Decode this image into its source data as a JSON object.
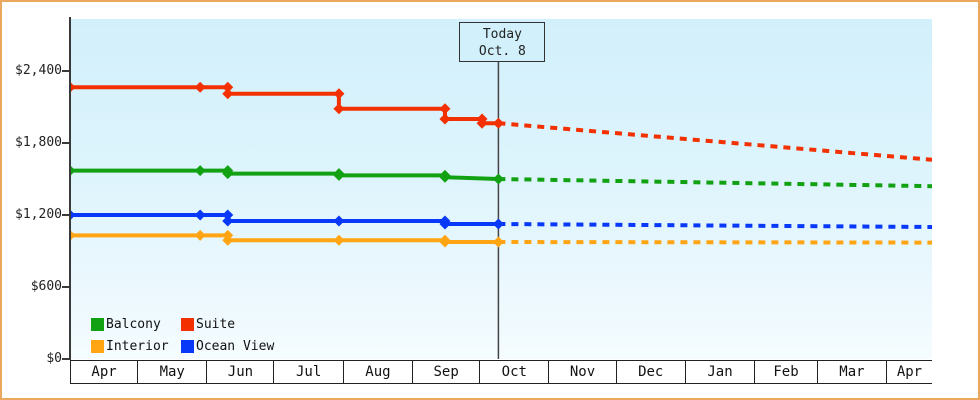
{
  "window": {
    "border_color": "#e9a85e",
    "background": "#ffffff",
    "plot_background_top": "#d2f0fb",
    "plot_background_bottom": "#f5fcfe"
  },
  "chart_data": {
    "type": "line",
    "title": "",
    "description": "Cabin price history by category with dotted future projection after today",
    "y_axis": {
      "tick_labels": [
        "$0",
        "$600",
        "$1,200",
        "$1,800",
        "$2,400"
      ],
      "tick_values": [
        0,
        600,
        1200,
        1800,
        2400
      ],
      "range": [
        0,
        2400
      ],
      "grid": false
    },
    "x_axis": {
      "month_labels": [
        "Apr",
        "May",
        "Jun",
        "Jul",
        "Aug",
        "Sep",
        "Oct",
        "Nov",
        "Dec",
        "Jan",
        "Feb",
        "Mar",
        "Apr"
      ],
      "month_weights": [
        30,
        31,
        30,
        31,
        31,
        30,
        31,
        30,
        31,
        31,
        28,
        31,
        20
      ]
    },
    "today": {
      "label_line1": "Today",
      "label_line2": "Oct. 8",
      "x_frac": 0.497
    },
    "series": [
      {
        "name": "Suite",
        "color": "#f23000",
        "points": [
          {
            "date": "Apr",
            "x_frac": 0.0,
            "price": 2265
          },
          {
            "date": "May 29",
            "x_frac": 0.151,
            "price": 2265
          },
          {
            "date": "Jun 10",
            "x_frac": 0.183,
            "price": 2265
          },
          {
            "date": "Jun 10",
            "x_frac": 0.183,
            "price": 2210
          },
          {
            "date": "Jul 30",
            "x_frac": 0.312,
            "price": 2210
          },
          {
            "date": "Jul 30",
            "x_frac": 0.312,
            "price": 2085
          },
          {
            "date": "Sep 15",
            "x_frac": 0.435,
            "price": 2085
          },
          {
            "date": "Sep 15",
            "x_frac": 0.435,
            "price": 2000
          },
          {
            "date": "Oct 1",
            "x_frac": 0.478,
            "price": 2000
          },
          {
            "date": "Oct 1",
            "x_frac": 0.478,
            "price": 1965
          },
          {
            "date": "Oct 8",
            "x_frac": 0.497,
            "price": 1965
          }
        ],
        "projection": [
          {
            "date": "Oct 8",
            "x_frac": 0.497,
            "price": 1965
          },
          {
            "date": "Apr",
            "x_frac": 1.0,
            "price": 1660
          }
        ]
      },
      {
        "name": "Balcony",
        "color": "#12a112",
        "points": [
          {
            "date": "Apr",
            "x_frac": 0.0,
            "price": 1570
          },
          {
            "date": "May 29",
            "x_frac": 0.151,
            "price": 1570
          },
          {
            "date": "Jun 10",
            "x_frac": 0.183,
            "price": 1570
          },
          {
            "date": "Jun 10",
            "x_frac": 0.183,
            "price": 1545
          },
          {
            "date": "Jul 30",
            "x_frac": 0.312,
            "price": 1545
          },
          {
            "date": "Jul 30",
            "x_frac": 0.312,
            "price": 1530
          },
          {
            "date": "Sep 15",
            "x_frac": 0.435,
            "price": 1530
          },
          {
            "date": "Sep 15",
            "x_frac": 0.435,
            "price": 1515
          },
          {
            "date": "Oct 8",
            "x_frac": 0.497,
            "price": 1500
          }
        ],
        "projection": [
          {
            "date": "Oct 8",
            "x_frac": 0.497,
            "price": 1500
          },
          {
            "date": "Apr",
            "x_frac": 1.0,
            "price": 1440
          }
        ]
      },
      {
        "name": "Ocean View",
        "color": "#0838f8",
        "points": [
          {
            "date": "Apr",
            "x_frac": 0.0,
            "price": 1200
          },
          {
            "date": "May 29",
            "x_frac": 0.151,
            "price": 1200
          },
          {
            "date": "Jun 10",
            "x_frac": 0.183,
            "price": 1200
          },
          {
            "date": "Jun 10",
            "x_frac": 0.183,
            "price": 1150
          },
          {
            "date": "Jul 30",
            "x_frac": 0.312,
            "price": 1150
          },
          {
            "date": "Sep 15",
            "x_frac": 0.435,
            "price": 1150
          },
          {
            "date": "Sep 15",
            "x_frac": 0.435,
            "price": 1125
          },
          {
            "date": "Oct 8",
            "x_frac": 0.497,
            "price": 1125
          }
        ],
        "projection": [
          {
            "date": "Oct 8",
            "x_frac": 0.497,
            "price": 1125
          },
          {
            "date": "Apr",
            "x_frac": 1.0,
            "price": 1100
          }
        ]
      },
      {
        "name": "Interior",
        "color": "#ffa513",
        "points": [
          {
            "date": "Apr",
            "x_frac": 0.0,
            "price": 1030
          },
          {
            "date": "May 29",
            "x_frac": 0.151,
            "price": 1030
          },
          {
            "date": "Jun 10",
            "x_frac": 0.183,
            "price": 1030
          },
          {
            "date": "Jun 10",
            "x_frac": 0.183,
            "price": 990
          },
          {
            "date": "Jul 30",
            "x_frac": 0.312,
            "price": 990
          },
          {
            "date": "Sep 15",
            "x_frac": 0.435,
            "price": 990
          },
          {
            "date": "Sep 15",
            "x_frac": 0.435,
            "price": 975
          },
          {
            "date": "Oct 8",
            "x_frac": 0.497,
            "price": 975
          }
        ],
        "projection": [
          {
            "date": "Oct 8",
            "x_frac": 0.497,
            "price": 975
          },
          {
            "date": "Apr",
            "x_frac": 1.0,
            "price": 970
          }
        ]
      }
    ],
    "legend": {
      "position": "bottom-left",
      "rows": [
        [
          {
            "label": "Balcony",
            "color": "#12a112"
          },
          {
            "label": "Suite",
            "color": "#f23000"
          }
        ],
        [
          {
            "label": "Interior",
            "color": "#ffa513"
          },
          {
            "label": "Ocean View",
            "color": "#0838f8"
          }
        ]
      ]
    }
  }
}
